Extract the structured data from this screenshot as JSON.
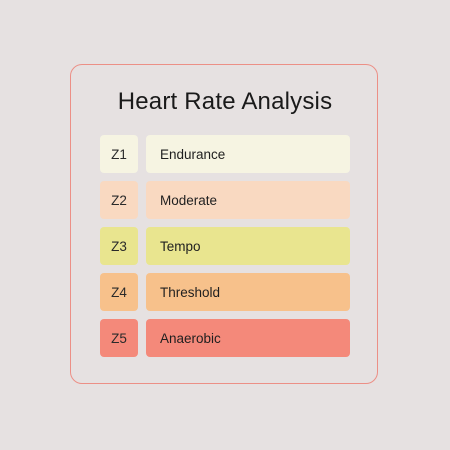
{
  "page": {
    "background": "#e6e1e1",
    "border_color": "#ec8f86"
  },
  "title": "Heart Rate Analysis",
  "zones": [
    {
      "code": "Z1",
      "label": "Endurance",
      "color": "#f6f4e2"
    },
    {
      "code": "Z2",
      "label": "Moderate",
      "color": "#f9d9c1"
    },
    {
      "code": "Z3",
      "label": "Tempo",
      "color": "#e9e58f"
    },
    {
      "code": "Z4",
      "label": "Threshold",
      "color": "#f7c18b"
    },
    {
      "code": "Z5",
      "label": "Anaerobic",
      "color": "#f4897a"
    }
  ]
}
